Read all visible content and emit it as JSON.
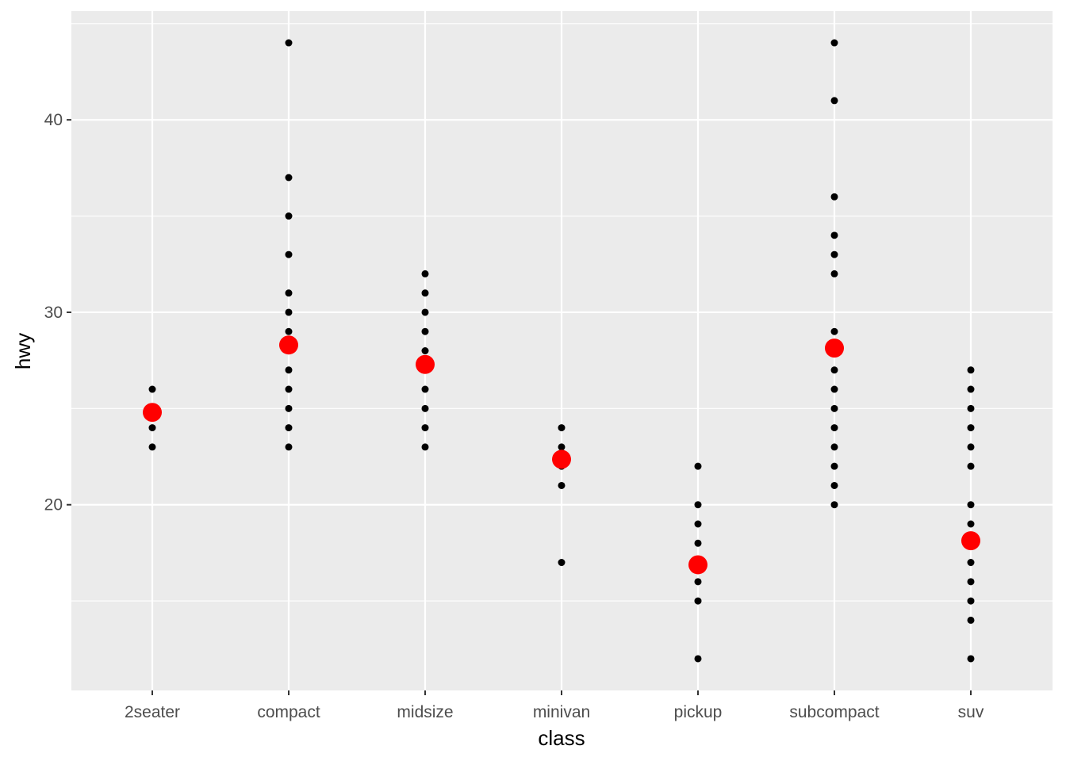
{
  "chart_data": {
    "type": "scatter",
    "title": "",
    "xlabel": "class",
    "ylabel": "hwy",
    "categories": [
      "2seater",
      "compact",
      "midsize",
      "minivan",
      "pickup",
      "subcompact",
      "suv"
    ],
    "ylim": [
      10.35,
      45.65
    ],
    "y_ticks": [
      20,
      30,
      40
    ],
    "y_tick_labels": [
      "20",
      "30",
      "40"
    ],
    "grid": true,
    "legend": "none",
    "series": [
      {
        "color": "#000000",
        "marker": "small-point",
        "points": [
          {
            "x": "2seater",
            "y": 23
          },
          {
            "x": "2seater",
            "y": 24
          },
          {
            "x": "2seater",
            "y": 26
          },
          {
            "x": "compact",
            "y": 23
          },
          {
            "x": "compact",
            "y": 24
          },
          {
            "x": "compact",
            "y": 25
          },
          {
            "x": "compact",
            "y": 26
          },
          {
            "x": "compact",
            "y": 27
          },
          {
            "x": "compact",
            "y": 29
          },
          {
            "x": "compact",
            "y": 30
          },
          {
            "x": "compact",
            "y": 31
          },
          {
            "x": "compact",
            "y": 33
          },
          {
            "x": "compact",
            "y": 35
          },
          {
            "x": "compact",
            "y": 37
          },
          {
            "x": "compact",
            "y": 44
          },
          {
            "x": "midsize",
            "y": 23
          },
          {
            "x": "midsize",
            "y": 24
          },
          {
            "x": "midsize",
            "y": 25
          },
          {
            "x": "midsize",
            "y": 26
          },
          {
            "x": "midsize",
            "y": 27
          },
          {
            "x": "midsize",
            "y": 28
          },
          {
            "x": "midsize",
            "y": 29
          },
          {
            "x": "midsize",
            "y": 30
          },
          {
            "x": "midsize",
            "y": 31
          },
          {
            "x": "midsize",
            "y": 32
          },
          {
            "x": "minivan",
            "y": 17
          },
          {
            "x": "minivan",
            "y": 21
          },
          {
            "x": "minivan",
            "y": 22
          },
          {
            "x": "minivan",
            "y": 23
          },
          {
            "x": "minivan",
            "y": 24
          },
          {
            "x": "pickup",
            "y": 12
          },
          {
            "x": "pickup",
            "y": 15
          },
          {
            "x": "pickup",
            "y": 16
          },
          {
            "x": "pickup",
            "y": 17
          },
          {
            "x": "pickup",
            "y": 18
          },
          {
            "x": "pickup",
            "y": 19
          },
          {
            "x": "pickup",
            "y": 20
          },
          {
            "x": "pickup",
            "y": 22
          },
          {
            "x": "subcompact",
            "y": 20
          },
          {
            "x": "subcompact",
            "y": 21
          },
          {
            "x": "subcompact",
            "y": 22
          },
          {
            "x": "subcompact",
            "y": 23
          },
          {
            "x": "subcompact",
            "y": 24
          },
          {
            "x": "subcompact",
            "y": 25
          },
          {
            "x": "subcompact",
            "y": 26
          },
          {
            "x": "subcompact",
            "y": 27
          },
          {
            "x": "subcompact",
            "y": 28
          },
          {
            "x": "subcompact",
            "y": 29
          },
          {
            "x": "subcompact",
            "y": 32
          },
          {
            "x": "subcompact",
            "y": 33
          },
          {
            "x": "subcompact",
            "y": 34
          },
          {
            "x": "subcompact",
            "y": 36
          },
          {
            "x": "subcompact",
            "y": 41
          },
          {
            "x": "subcompact",
            "y": 44
          },
          {
            "x": "suv",
            "y": 12
          },
          {
            "x": "suv",
            "y": 14
          },
          {
            "x": "suv",
            "y": 15
          },
          {
            "x": "suv",
            "y": 16
          },
          {
            "x": "suv",
            "y": 17
          },
          {
            "x": "suv",
            "y": 18
          },
          {
            "x": "suv",
            "y": 19
          },
          {
            "x": "suv",
            "y": 20
          },
          {
            "x": "suv",
            "y": 22
          },
          {
            "x": "suv",
            "y": 23
          },
          {
            "x": "suv",
            "y": 24
          },
          {
            "x": "suv",
            "y": 25
          },
          {
            "x": "suv",
            "y": 26
          },
          {
            "x": "suv",
            "y": 27
          }
        ]
      },
      {
        "color": "#ff0000",
        "marker": "large-point",
        "points": [
          {
            "x": "2seater",
            "y": 24.8
          },
          {
            "x": "compact",
            "y": 28.3
          },
          {
            "x": "midsize",
            "y": 27.29
          },
          {
            "x": "minivan",
            "y": 22.36
          },
          {
            "x": "pickup",
            "y": 16.88
          },
          {
            "x": "subcompact",
            "y": 28.14
          },
          {
            "x": "suv",
            "y": 18.13
          }
        ]
      }
    ]
  }
}
